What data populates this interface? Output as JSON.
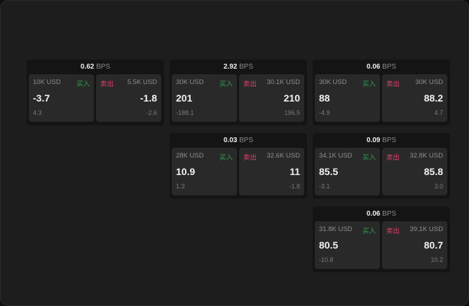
{
  "unit": "BPS",
  "buy_label": "买入",
  "sell_label": "卖出",
  "colors": {
    "buy": "#2ea04f",
    "sell": "#e0436b"
  },
  "cards": [
    {
      "spread": "0.62",
      "bid": {
        "size": "10K USD",
        "price": "-3.7",
        "change": "4.3"
      },
      "ask": {
        "size": "5.5K USD",
        "price": "-1.8",
        "change": "-2.6"
      }
    },
    {
      "spread": "2.92",
      "bid": {
        "size": "30K USD",
        "price": "201",
        "change": "-188.1"
      },
      "ask": {
        "size": "30.1K USD",
        "price": "210",
        "change": "196.5"
      }
    },
    {
      "spread": "0.06",
      "bid": {
        "size": "30K USD",
        "price": "88",
        "change": "-4.9"
      },
      "ask": {
        "size": "30K USD",
        "price": "88.2",
        "change": "4.7"
      }
    },
    {
      "spread": "0.03",
      "bid": {
        "size": "28K USD",
        "price": "10.9",
        "change": "1.3"
      },
      "ask": {
        "size": "32.6K USD",
        "price": "11",
        "change": "-1.8"
      }
    },
    {
      "spread": "0.09",
      "bid": {
        "size": "34.1K USD",
        "price": "85.5",
        "change": "-3.1"
      },
      "ask": {
        "size": "32.8K USD",
        "price": "85.8",
        "change": "3.0"
      }
    },
    {
      "spread": "0.06",
      "bid": {
        "size": "31.8K USD",
        "price": "80.5",
        "change": "-10.8"
      },
      "ask": {
        "size": "39.1K USD",
        "price": "80.7",
        "change": "10.2"
      }
    }
  ]
}
